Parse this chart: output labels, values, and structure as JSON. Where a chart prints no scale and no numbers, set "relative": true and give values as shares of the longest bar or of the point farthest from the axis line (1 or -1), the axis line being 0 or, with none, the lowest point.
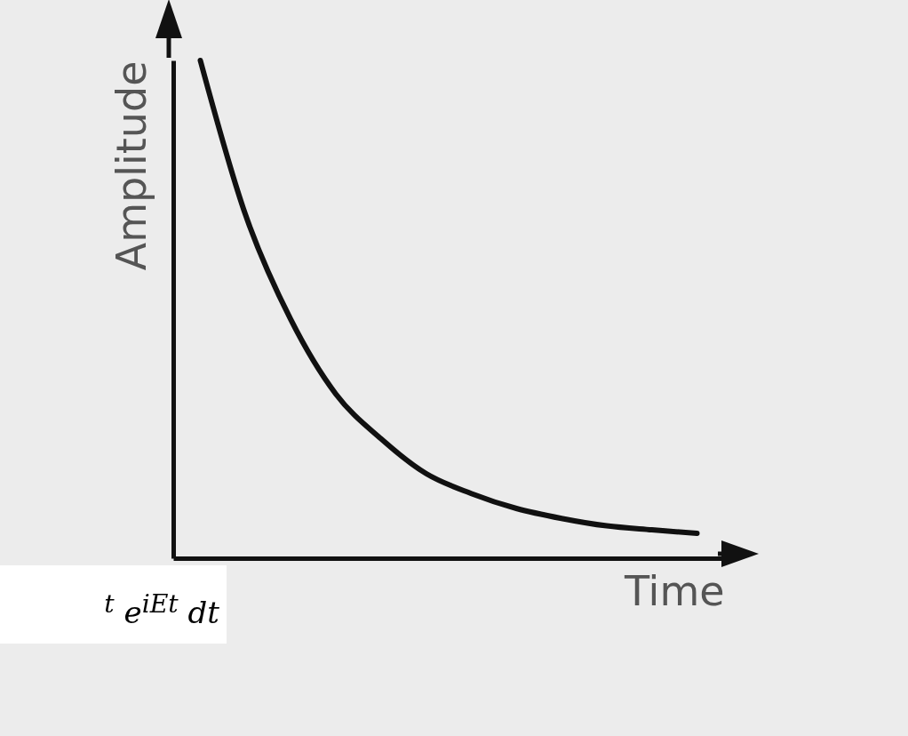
{
  "chart_data": {
    "type": "line",
    "relative": true,
    "xlabel": "Time",
    "ylabel": "Amplitude",
    "categories": [
      null,
      null,
      null,
      null,
      null,
      null,
      null,
      null,
      null,
      null,
      null,
      null
    ],
    "series": [
      {
        "color": "#111111",
        "values": [
          1,
          0.69,
          0.48,
          0.33,
          0.24,
          0.17,
          0.13,
          0.1,
          0.08,
          0.065,
          0.057,
          0.05
        ]
      }
    ],
    "annotations": [
      "$^{t}$ e$^{iEt}$ dt"
    ],
    "grid": false,
    "legend": false,
    "marker": "none",
    "line_style": "solid"
  }
}
